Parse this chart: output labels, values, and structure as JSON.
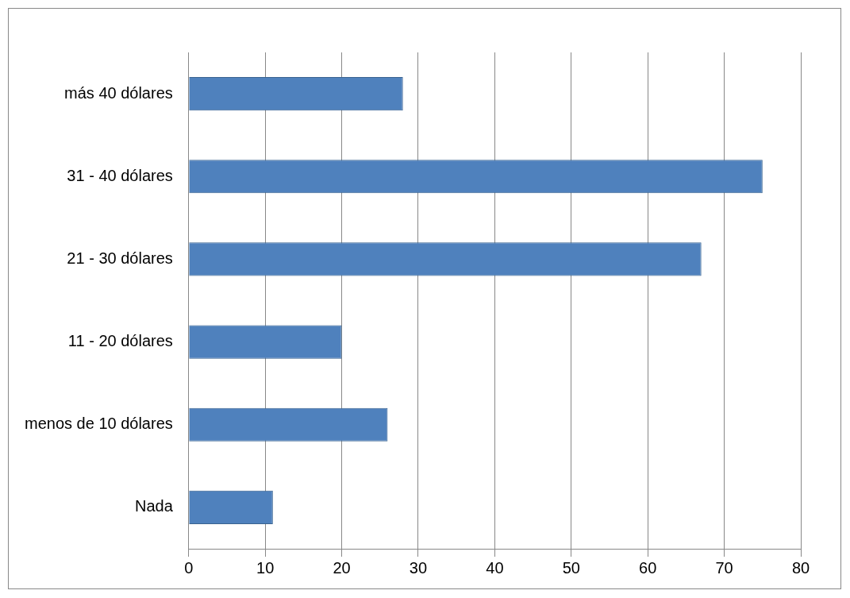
{
  "chart_data": {
    "type": "bar",
    "orientation": "horizontal",
    "categories": [
      "más 40 dólares",
      "31 - 40 dólares",
      "21 - 30 dólares",
      "11 - 20 dólares",
      "menos de 10 dólares",
      "Nada"
    ],
    "values": [
      28,
      75,
      67,
      20,
      26,
      11
    ],
    "color": "#4f81bd",
    "xlim": [
      0,
      80
    ],
    "xticks": [
      0,
      10,
      20,
      30,
      40,
      50,
      60,
      70,
      80
    ],
    "grid": "x",
    "legend": false
  }
}
